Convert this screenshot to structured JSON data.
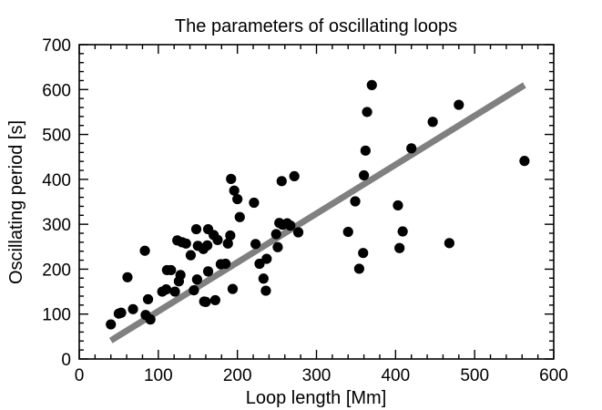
{
  "chart_data": {
    "type": "scatter",
    "title": "The parameters of oscillating loops",
    "xlabel": "Loop length [Mm]",
    "ylabel": "Oscillating period [s]",
    "xlim": [
      0,
      600
    ],
    "ylim": [
      0,
      700
    ],
    "xticks": [
      0,
      100,
      200,
      300,
      400,
      500,
      600
    ],
    "yticks": [
      0,
      100,
      200,
      300,
      400,
      500,
      600,
      700
    ],
    "grid": false,
    "point_color": "#000000",
    "fit_color": "#808080",
    "fit_line": {
      "x": [
        40,
        563
      ],
      "y": [
        41,
        610
      ]
    },
    "points": [
      {
        "x": 40,
        "y": 77
      },
      {
        "x": 50,
        "y": 101
      },
      {
        "x": 53,
        "y": 103
      },
      {
        "x": 61,
        "y": 182
      },
      {
        "x": 68,
        "y": 111
      },
      {
        "x": 83,
        "y": 241
      },
      {
        "x": 84,
        "y": 98
      },
      {
        "x": 87,
        "y": 133
      },
      {
        "x": 90,
        "y": 88
      },
      {
        "x": 105,
        "y": 150
      },
      {
        "x": 110,
        "y": 155
      },
      {
        "x": 111,
        "y": 198
      },
      {
        "x": 116,
        "y": 198
      },
      {
        "x": 121,
        "y": 150
      },
      {
        "x": 124,
        "y": 264
      },
      {
        "x": 126,
        "y": 173
      },
      {
        "x": 128,
        "y": 187
      },
      {
        "x": 130,
        "y": 260
      },
      {
        "x": 135,
        "y": 257
      },
      {
        "x": 141,
        "y": 231
      },
      {
        "x": 145,
        "y": 153
      },
      {
        "x": 148,
        "y": 289
      },
      {
        "x": 149,
        "y": 177
      },
      {
        "x": 150,
        "y": 252
      },
      {
        "x": 157,
        "y": 245
      },
      {
        "x": 158,
        "y": 128
      },
      {
        "x": 160,
        "y": 127
      },
      {
        "x": 162,
        "y": 253
      },
      {
        "x": 163,
        "y": 289
      },
      {
        "x": 163,
        "y": 195
      },
      {
        "x": 170,
        "y": 276
      },
      {
        "x": 172,
        "y": 131
      },
      {
        "x": 175,
        "y": 265
      },
      {
        "x": 179,
        "y": 211
      },
      {
        "x": 185,
        "y": 212
      },
      {
        "x": 188,
        "y": 257
      },
      {
        "x": 191,
        "y": 275
      },
      {
        "x": 192,
        "y": 401
      },
      {
        "x": 194,
        "y": 156
      },
      {
        "x": 196,
        "y": 375
      },
      {
        "x": 200,
        "y": 356
      },
      {
        "x": 203,
        "y": 316
      },
      {
        "x": 221,
        "y": 348
      },
      {
        "x": 223,
        "y": 256
      },
      {
        "x": 228,
        "y": 212
      },
      {
        "x": 233,
        "y": 179
      },
      {
        "x": 236,
        "y": 152
      },
      {
        "x": 237,
        "y": 223
      },
      {
        "x": 249,
        "y": 278
      },
      {
        "x": 251,
        "y": 249
      },
      {
        "x": 253,
        "y": 303
      },
      {
        "x": 256,
        "y": 396
      },
      {
        "x": 257,
        "y": 299
      },
      {
        "x": 263,
        "y": 302
      },
      {
        "x": 267,
        "y": 297
      },
      {
        "x": 272,
        "y": 407
      },
      {
        "x": 277,
        "y": 282
      },
      {
        "x": 340,
        "y": 283
      },
      {
        "x": 349,
        "y": 351
      },
      {
        "x": 354,
        "y": 201
      },
      {
        "x": 359,
        "y": 236
      },
      {
        "x": 360,
        "y": 409
      },
      {
        "x": 362,
        "y": 464
      },
      {
        "x": 364,
        "y": 550
      },
      {
        "x": 370,
        "y": 610
      },
      {
        "x": 403,
        "y": 342
      },
      {
        "x": 405,
        "y": 247
      },
      {
        "x": 409,
        "y": 284
      },
      {
        "x": 420,
        "y": 469
      },
      {
        "x": 447,
        "y": 528
      },
      {
        "x": 468,
        "y": 258
      },
      {
        "x": 480,
        "y": 566
      },
      {
        "x": 563,
        "y": 441
      }
    ]
  }
}
